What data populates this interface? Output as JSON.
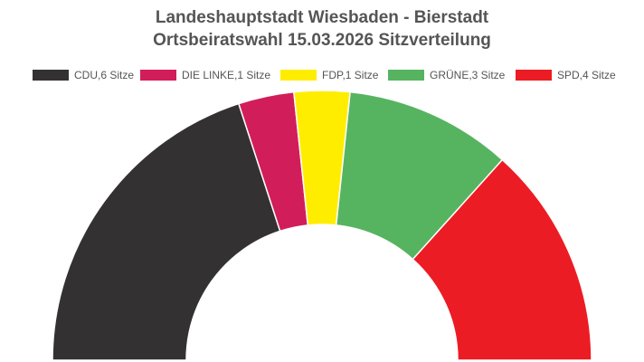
{
  "chart_data": {
    "type": "pie",
    "title_line1": "Landeshauptstadt Wiesbaden - Bierstadt",
    "title_line2": "Ortsbeiratswahl 15.03.2026 Sitzverteilung",
    "legend_position": "top",
    "series": [
      {
        "label": "CDU,6 Sitze",
        "party": "CDU",
        "value": 6,
        "color": "#333132"
      },
      {
        "label": "DIE LINKE,1 Sitze",
        "party": "DIE LINKE",
        "value": 1,
        "color": "#d21d5b"
      },
      {
        "label": "FDP,1 Sitze",
        "party": "FDP",
        "value": 1,
        "color": "#ffed00"
      },
      {
        "label": "GRÜNE,3 Sitze",
        "party": "GRÜNE",
        "value": 3,
        "color": "#56b461"
      },
      {
        "label": "SPD,4 Sitze",
        "party": "SPD",
        "value": 4,
        "color": "#ec1c24"
      }
    ]
  }
}
